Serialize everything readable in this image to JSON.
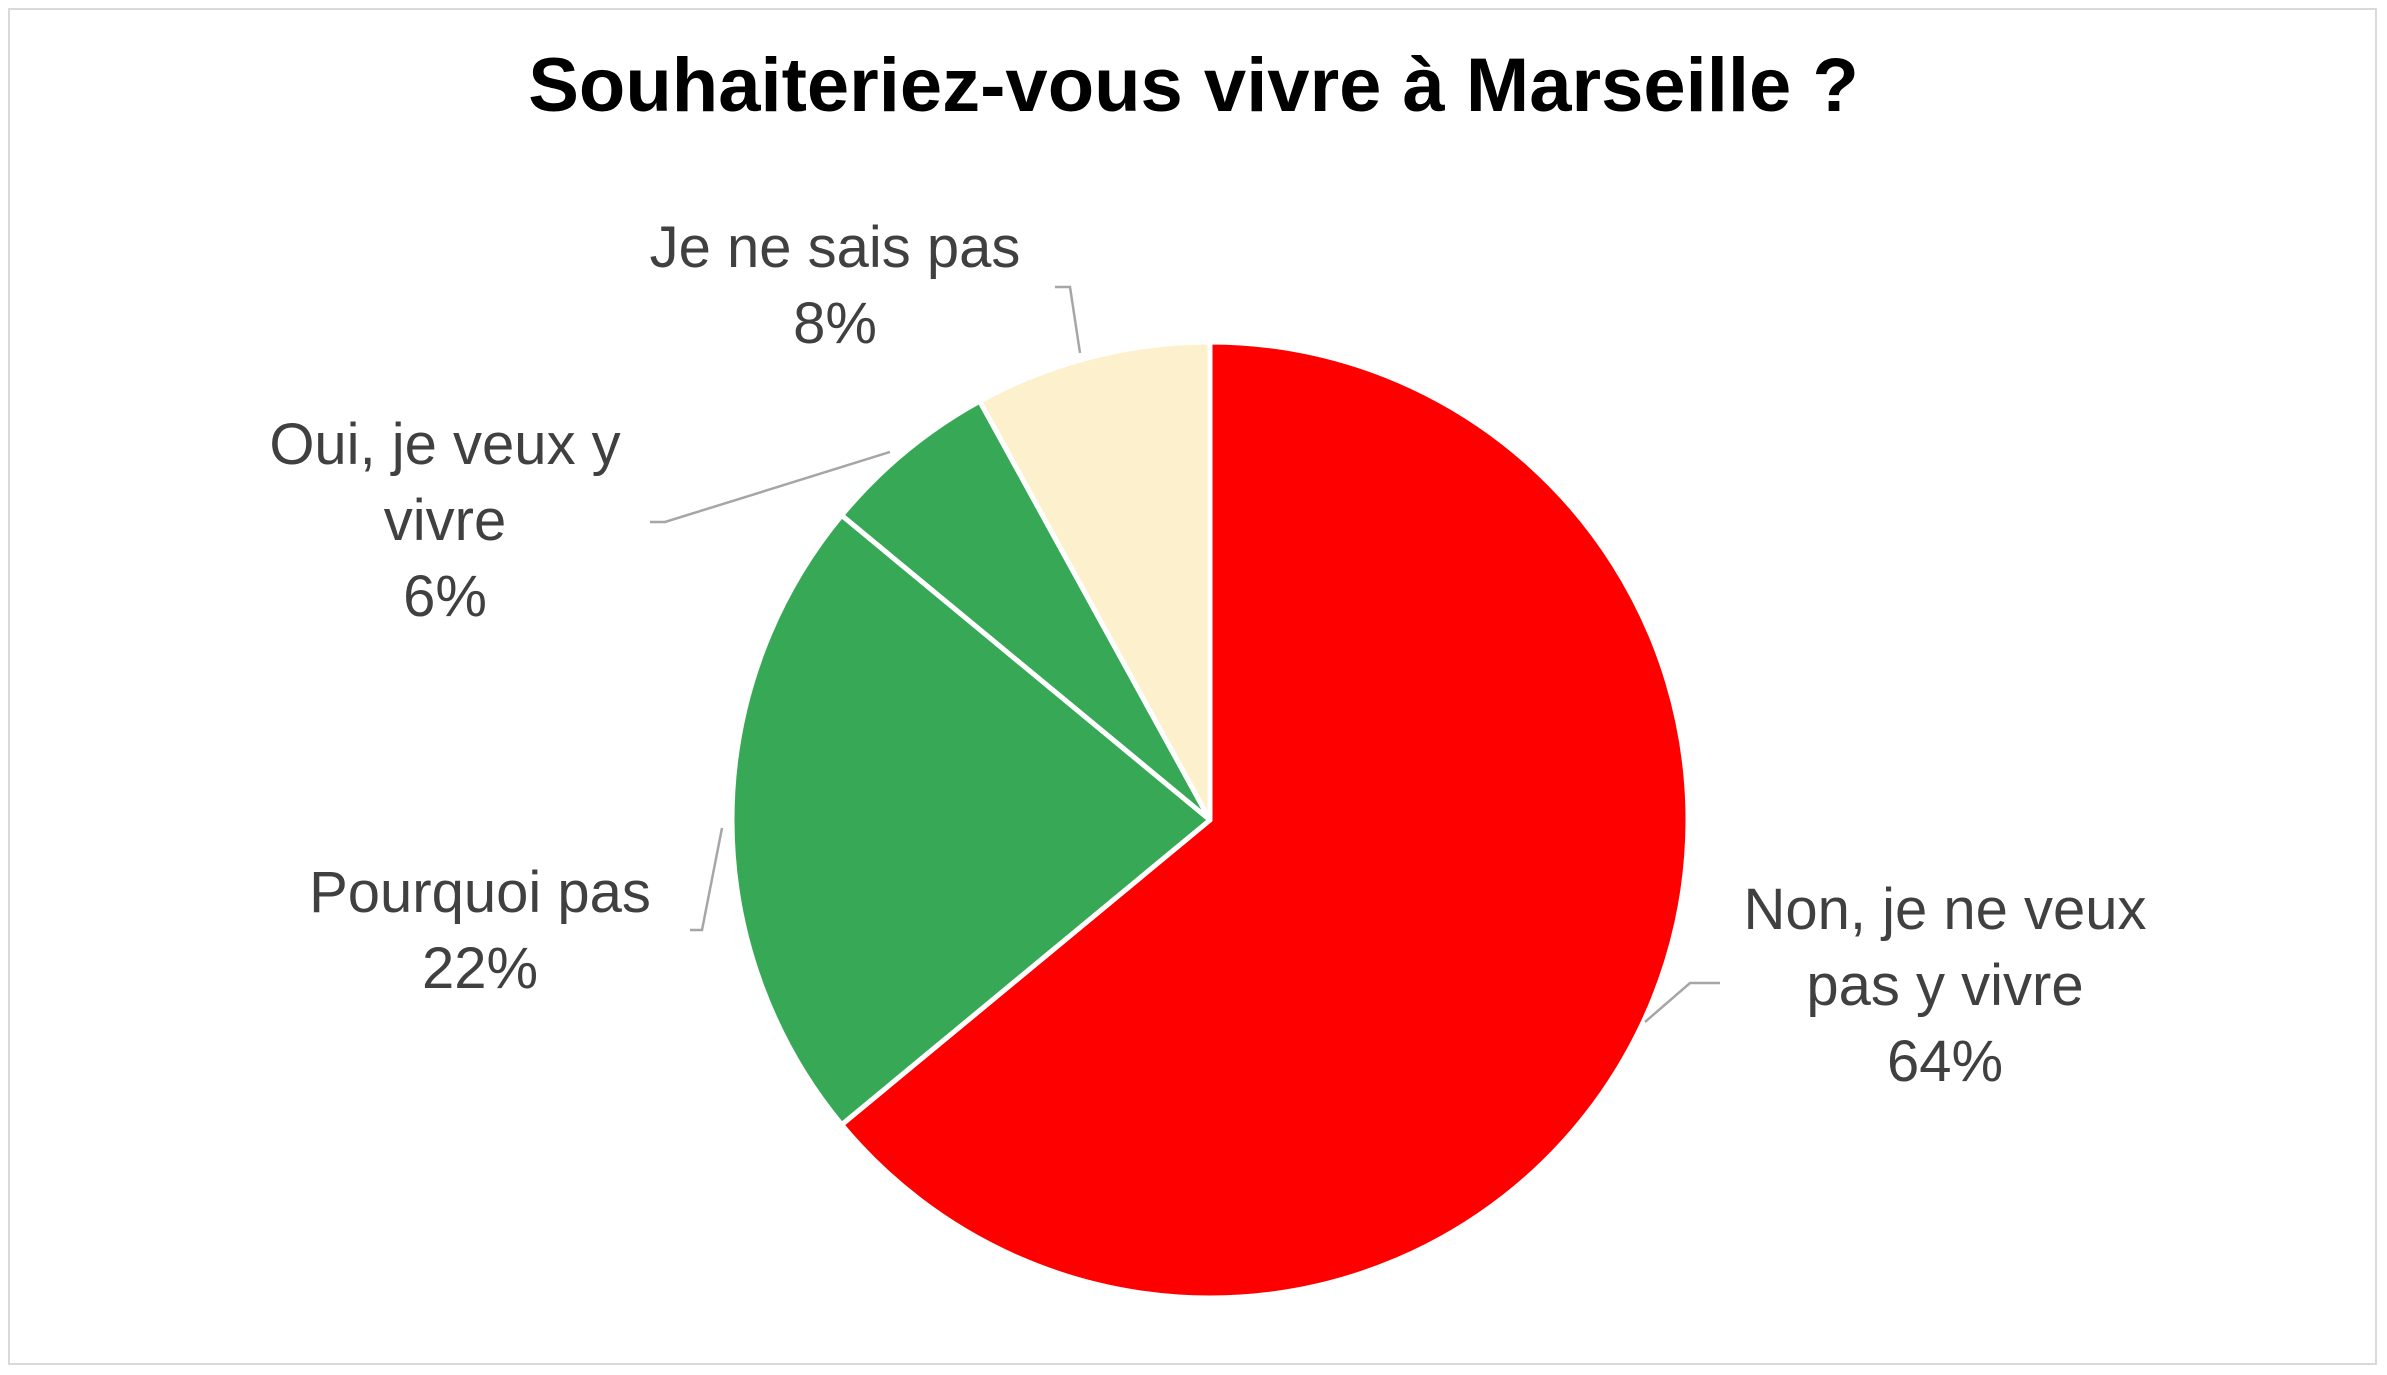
{
  "chart_data": {
    "type": "pie",
    "title": "Souhaiteriez-vous vivre à Marseille ?",
    "slices": [
      {
        "label_lines": [
          "Non, je ne veux",
          "pas y vivre"
        ],
        "value": 64,
        "value_label": "64%",
        "color": "#ff0000"
      },
      {
        "label_lines": [
          "Pourquoi pas"
        ],
        "value": 22,
        "value_label": "22%",
        "color": "#37a856"
      },
      {
        "label_lines": [
          "Oui, je veux y",
          "vivre"
        ],
        "value": 6,
        "value_label": "6%",
        "color": "#37a856"
      },
      {
        "label_lines": [
          "Je ne sais pas"
        ],
        "value": 8,
        "value_label": "8%",
        "color": "#fdf0cd"
      }
    ],
    "start_angle": "12 o'clock",
    "direction": "clockwise",
    "legend": "none",
    "data_labels": "outside with leader lines"
  }
}
